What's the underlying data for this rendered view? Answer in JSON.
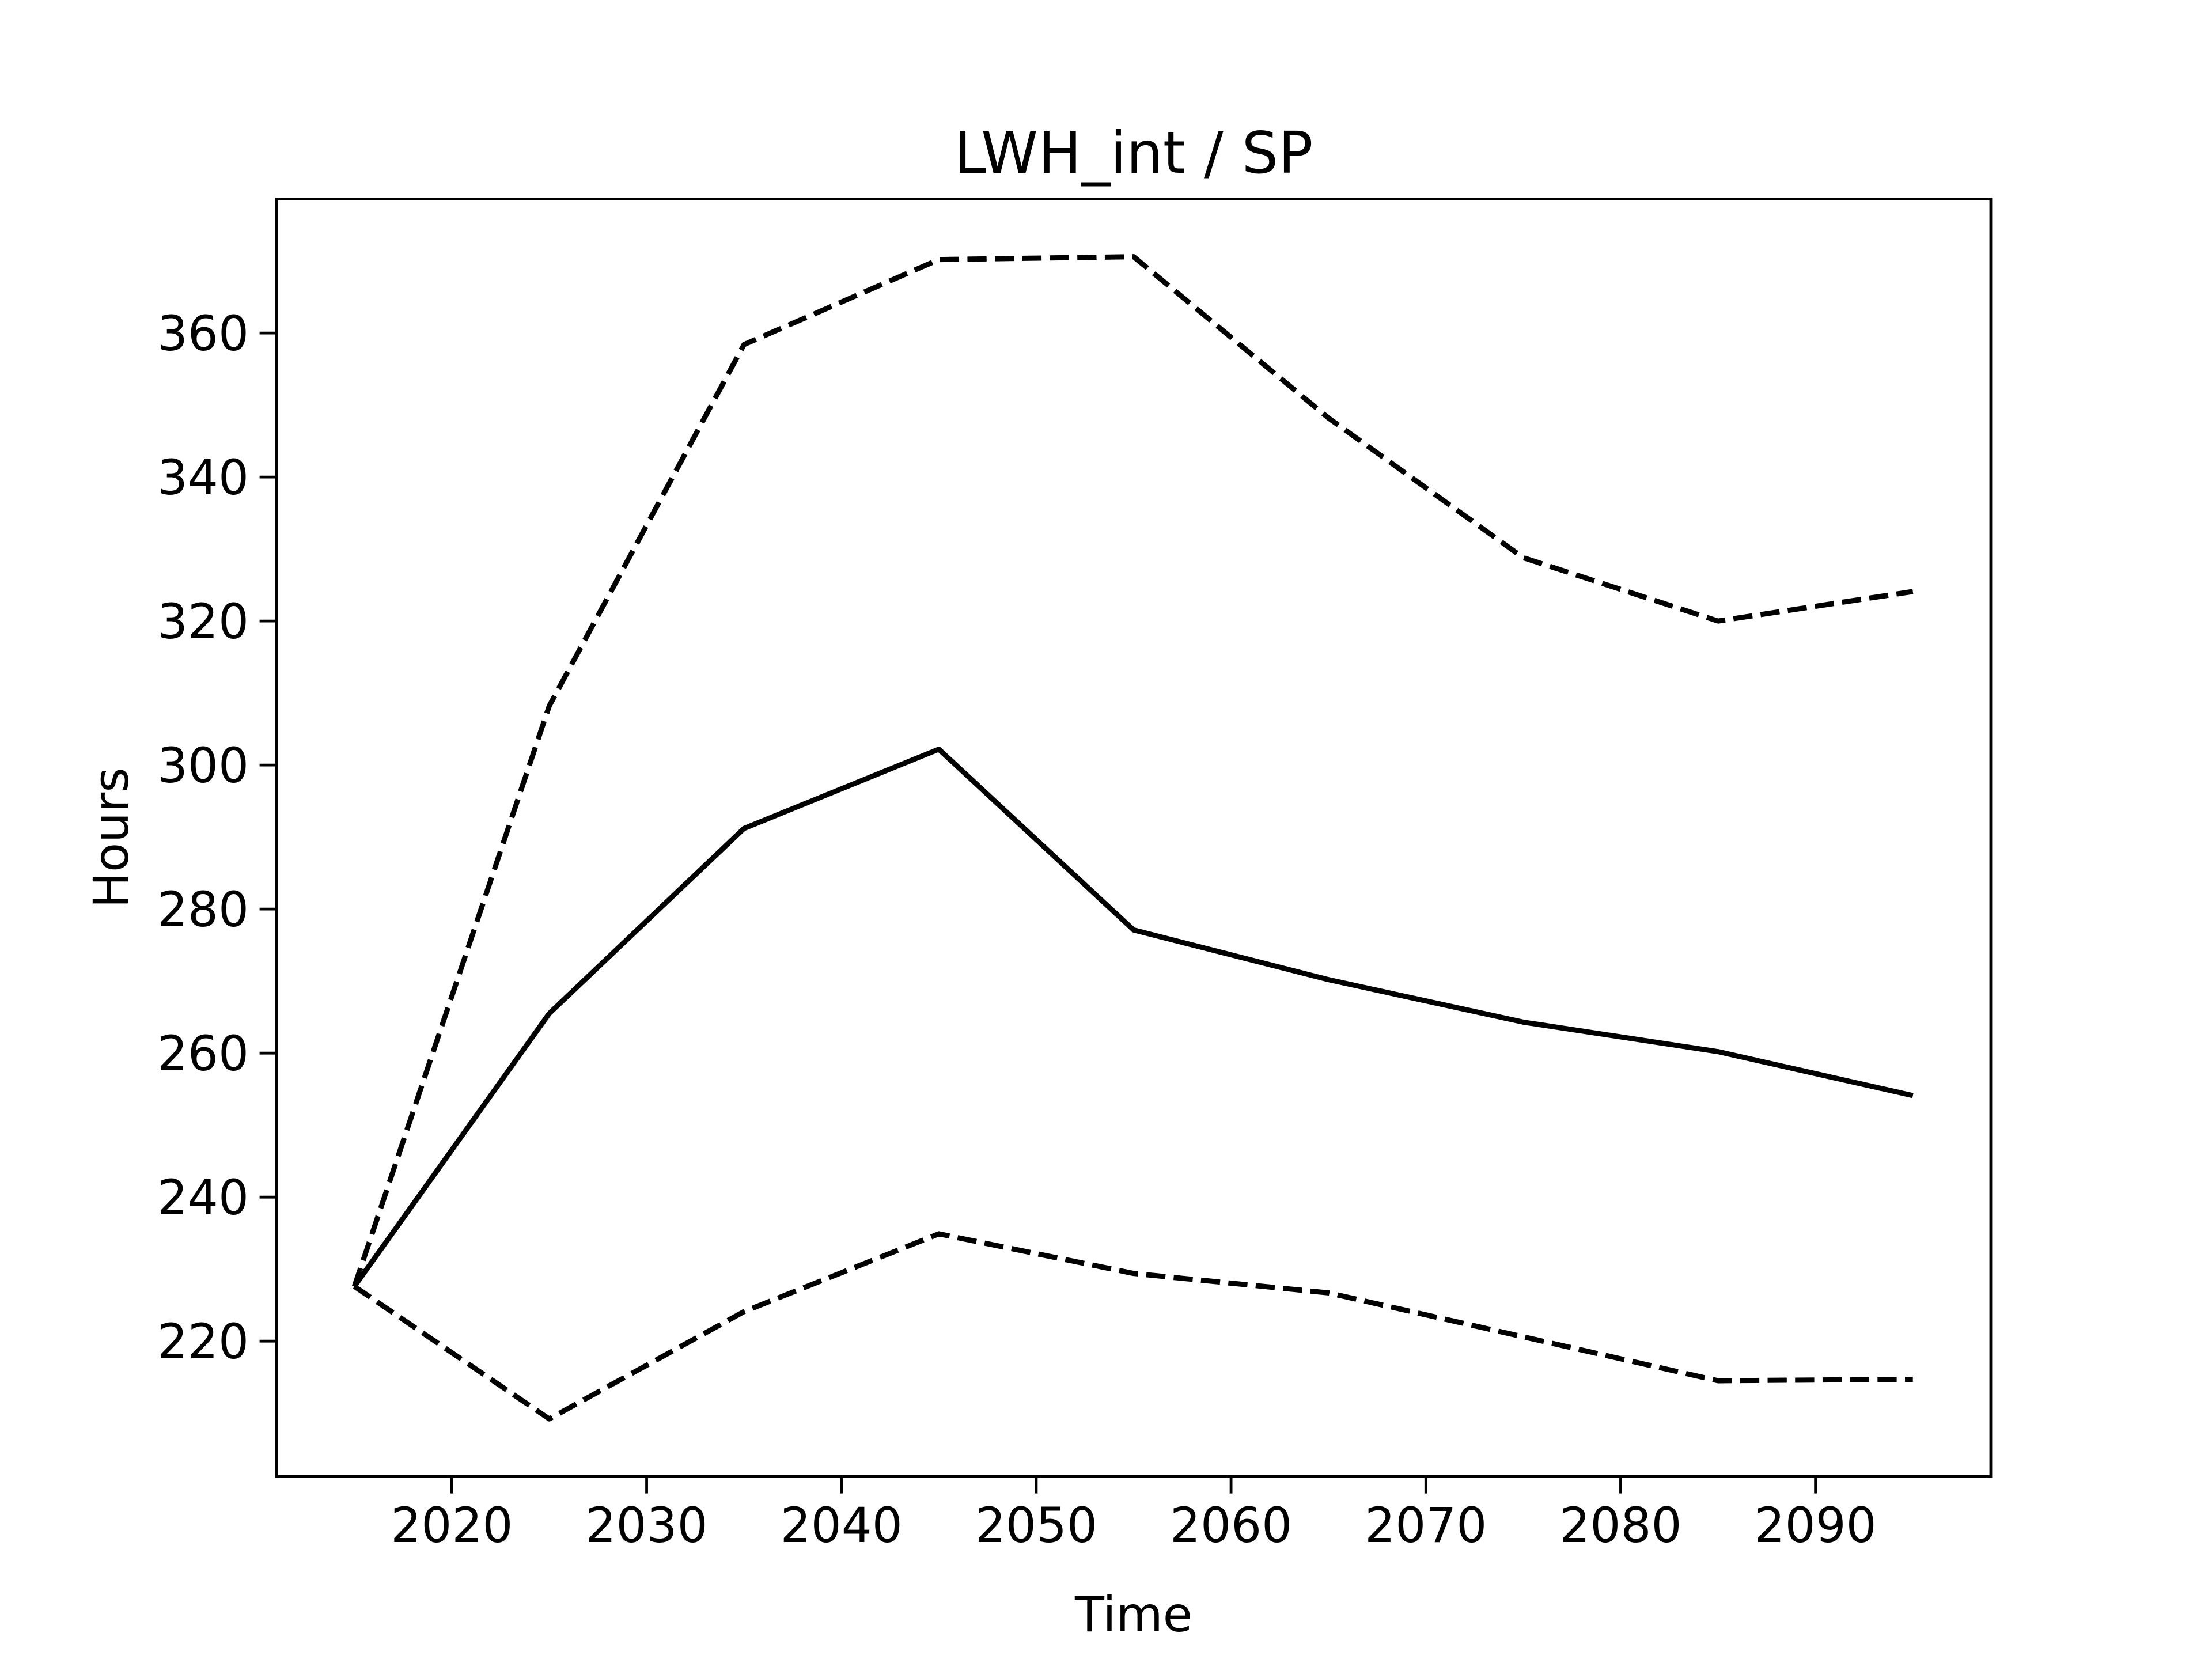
{
  "chart_data": {
    "type": "line",
    "title": "LWH_int / SP",
    "x_label": "Time",
    "y_label": "Hours",
    "x": [
      2015,
      2025,
      2035,
      2045,
      2055,
      2065,
      2075,
      2085,
      2095
    ],
    "series": [
      {
        "color": "#000000",
        "dashed": false,
        "values": [
          227.6,
          265.5,
          291.2,
          302.2,
          277.1,
          270.2,
          264.3,
          260.2,
          254.1
        ]
      },
      {
        "color": "#000000",
        "dashed": true,
        "values": [
          227.6,
          308.2,
          358.4,
          370.2,
          370.6,
          348.2,
          328.8,
          320.0,
          324.1
        ]
      },
      {
        "color": "#000000",
        "dashed": true,
        "values": [
          227.6,
          209.2,
          224.1,
          234.9,
          229.4,
          226.7,
          220.6,
          214.5,
          214.7
        ]
      }
    ],
    "xlim": [
      2011,
      2099
    ],
    "xticks": [
      2020,
      2030,
      2040,
      2050,
      2060,
      2070,
      2080,
      2090
    ],
    "ylim": [
      201.2,
      378.6
    ],
    "yticks": [
      220,
      240,
      260,
      280,
      300,
      320,
      340,
      360
    ]
  }
}
